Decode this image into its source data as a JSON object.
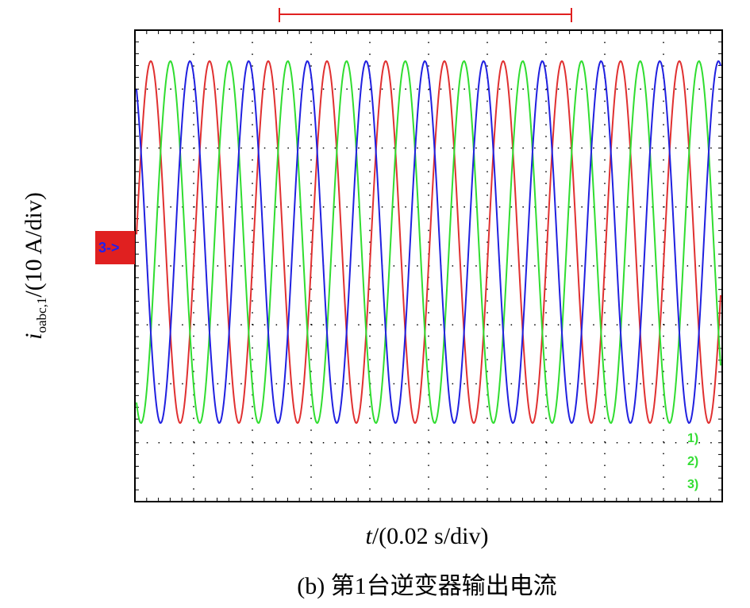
{
  "figure": {
    "y_label": {
      "symbol": "i",
      "subscript": "oabc,1",
      "unit": "/(10 A/div)"
    },
    "x_label": {
      "symbol": "t",
      "unit": "/(0.02 s/div)"
    },
    "caption": "(b) 第1台逆变器输出电流",
    "channels": [
      "1)",
      "2)",
      "3)"
    ],
    "marker": "3->"
  }
}
